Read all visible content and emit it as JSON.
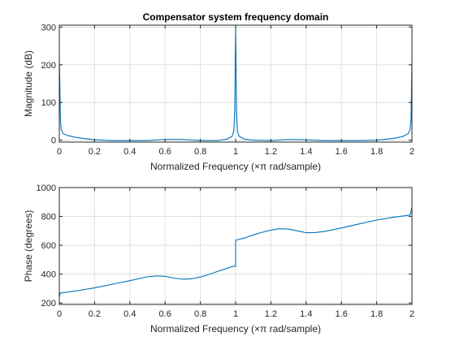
{
  "figure": {
    "colors": {
      "line": "#0072BD",
      "grid": "#e1e1e1",
      "axes": "#262626",
      "background": "#ffffff"
    }
  },
  "chart_data": [
    {
      "type": "line",
      "title": "Compensator system frequency domain",
      "xlabel": "Normalized Frequency  (×π rad/sample)",
      "ylabel": "Magnitude (dB)",
      "xlim": [
        0,
        2
      ],
      "ylim": [
        -5,
        305
      ],
      "xticks": [
        0,
        0.2,
        0.4,
        0.6,
        0.8,
        1,
        1.2,
        1.4,
        1.6,
        1.8,
        2
      ],
      "xtick_labels": [
        "0",
        "0.2",
        "0.4",
        "0.6",
        "0.8",
        "1",
        "1.2",
        "1.4",
        "1.6",
        "1.8",
        "2"
      ],
      "yticks": [
        0,
        100,
        200,
        300
      ],
      "ytick_labels": [
        "0",
        "100",
        "200",
        "300"
      ],
      "grid": true,
      "series": [
        {
          "x": [
            0,
            0.003,
            0.006,
            0.01,
            0.02,
            0.05,
            0.1,
            0.2,
            0.3,
            0.4,
            0.5,
            0.6,
            0.7,
            0.8,
            0.9,
            0.95,
            0.98,
            0.99,
            0.995,
            1.0,
            1.005,
            1.01,
            1.02,
            1.05,
            1.1,
            1.2,
            1.3,
            1.4,
            1.5,
            1.6,
            1.7,
            1.8,
            1.9,
            1.95,
            1.98,
            1.99,
            1.995,
            2.0
          ],
          "y": [
            210,
            150,
            60,
            30,
            18,
            12,
            7,
            1,
            -1,
            -1,
            -1,
            2,
            2,
            -1,
            -1,
            3,
            10,
            25,
            80,
            305,
            80,
            25,
            10,
            3,
            0,
            -1,
            2,
            1,
            -1,
            -1,
            -1,
            0,
            5,
            10,
            18,
            30,
            60,
            210
          ]
        }
      ]
    },
    {
      "type": "line",
      "xlabel": "Normalized Frequency  (×π rad/sample)",
      "ylabel": "Phase (degrees)",
      "xlim": [
        0,
        2
      ],
      "ylim": [
        190,
        1000
      ],
      "xticks": [
        0,
        0.2,
        0.4,
        0.6,
        0.8,
        1,
        1.2,
        1.4,
        1.6,
        1.8,
        2
      ],
      "xtick_labels": [
        "0",
        "0.2",
        "0.4",
        "0.6",
        "0.8",
        "1",
        "1.2",
        "1.4",
        "1.6",
        "1.8",
        "2"
      ],
      "yticks": [
        200,
        400,
        600,
        800,
        1000
      ],
      "ytick_labels": [
        "200",
        "400",
        "600",
        "800",
        "1000"
      ],
      "grid": true,
      "series": [
        {
          "x": [
            0,
            0.005,
            0.01,
            0.1,
            0.2,
            0.3,
            0.4,
            0.5,
            0.55,
            0.6,
            0.65,
            0.7,
            0.75,
            0.8,
            0.85,
            0.9,
            0.95,
            0.99,
            1.0,
            1.0,
            1.05,
            1.1,
            1.15,
            1.2,
            1.25,
            1.3,
            1.35,
            1.4,
            1.45,
            1.5,
            1.6,
            1.7,
            1.8,
            1.9,
            1.99,
            2.0
          ],
          "y": [
            240,
            268,
            270,
            285,
            305,
            330,
            355,
            382,
            388,
            385,
            372,
            365,
            368,
            380,
            398,
            420,
            440,
            455,
            455,
            635,
            650,
            672,
            690,
            705,
            715,
            712,
            700,
            687,
            688,
            695,
            720,
            748,
            775,
            795,
            810,
            865
          ]
        }
      ]
    }
  ]
}
